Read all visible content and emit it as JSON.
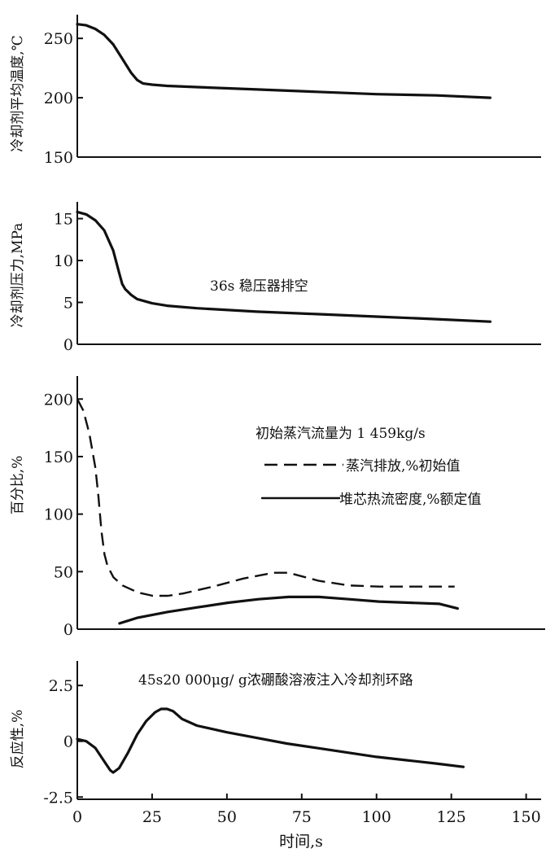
{
  "chart_data": [
    {
      "type": "line",
      "ylabel": "冷却剂平均温度,℃",
      "ylim": [
        150,
        270
      ],
      "xlim": [
        0,
        155
      ],
      "yticks": [
        150,
        200,
        250
      ],
      "series": [
        {
          "style": "solid",
          "x": [
            0,
            3,
            6,
            9,
            12,
            15,
            18,
            20,
            22,
            25,
            30,
            40,
            60,
            80,
            100,
            120,
            138
          ],
          "y": [
            262,
            261,
            258,
            253,
            245,
            233,
            221,
            215,
            212,
            211,
            210,
            209,
            207,
            205,
            203,
            202,
            200
          ]
        }
      ]
    },
    {
      "type": "line",
      "ylabel": "冷却剂压力,MPa",
      "ylim": [
        0,
        17
      ],
      "xlim": [
        0,
        155
      ],
      "yticks": [
        0,
        5,
        10,
        15
      ],
      "annotations": [
        "36s 稳压器排空"
      ],
      "series": [
        {
          "style": "solid",
          "x": [
            0,
            3,
            6,
            9,
            12,
            14,
            15,
            16,
            18,
            20,
            25,
            30,
            40,
            60,
            80,
            100,
            120,
            138
          ],
          "y": [
            15.8,
            15.5,
            14.8,
            13.6,
            11.2,
            8.5,
            7.2,
            6.6,
            5.9,
            5.4,
            4.9,
            4.6,
            4.3,
            3.9,
            3.6,
            3.3,
            3.0,
            2.7
          ]
        }
      ]
    },
    {
      "type": "line",
      "ylabel": "百分比,%",
      "ylim": [
        0,
        220
      ],
      "xlim": [
        0,
        155
      ],
      "yticks": [
        0,
        50,
        100,
        150,
        200
      ],
      "annotations": [
        "初始蒸汽流量为 1 459kg/s"
      ],
      "series": [
        {
          "name": "蒸汽排放,%初始值",
          "style": "dashed",
          "x": [
            0,
            2,
            4,
            6,
            7,
            8,
            9,
            10,
            12,
            15,
            20,
            25,
            30,
            35,
            45,
            55,
            65,
            70,
            80,
            90,
            100,
            110,
            125
          ],
          "y": [
            200,
            190,
            170,
            140,
            115,
            85,
            65,
            55,
            45,
            38,
            32,
            29,
            29,
            31,
            37,
            44,
            49,
            49,
            42,
            38,
            37,
            37,
            37
          ]
        },
        {
          "name": "堆芯热流密度,%额定值",
          "style": "solid",
          "x": [
            14,
            20,
            30,
            40,
            50,
            60,
            70,
            80,
            90,
            100,
            110,
            120,
            126
          ],
          "y": [
            5,
            10,
            15,
            19,
            23,
            26,
            28,
            28,
            26,
            24,
            23,
            22,
            18
          ]
        }
      ]
    },
    {
      "type": "line",
      "ylabel": "反应性,%",
      "xlabel": "时间,s",
      "ylim": [
        -2.6,
        3.6
      ],
      "xlim": [
        0,
        155
      ],
      "yticks": [
        -2.5,
        0,
        2.5
      ],
      "yticklabels": [
        "-2.5",
        "0",
        "2.5"
      ],
      "xticks": [
        0,
        25,
        50,
        75,
        100,
        125,
        150
      ],
      "annotations": [
        "45s20 000μg/ g浓硼酸溶液注入冷却剂环路"
      ],
      "series": [
        {
          "style": "solid",
          "x": [
            0,
            3,
            6,
            9,
            11,
            12,
            14,
            17,
            20,
            23,
            26,
            28,
            30,
            32,
            35,
            40,
            50,
            60,
            70,
            80,
            90,
            100,
            110,
            120,
            129
          ],
          "y": [
            0.1,
            0.0,
            -0.3,
            -0.9,
            -1.3,
            -1.4,
            -1.2,
            -0.5,
            0.3,
            0.9,
            1.3,
            1.45,
            1.45,
            1.35,
            1.0,
            0.7,
            0.4,
            0.15,
            -0.1,
            -0.3,
            -0.5,
            -0.7,
            -0.85,
            -1.0,
            -1.15
          ]
        }
      ]
    }
  ]
}
